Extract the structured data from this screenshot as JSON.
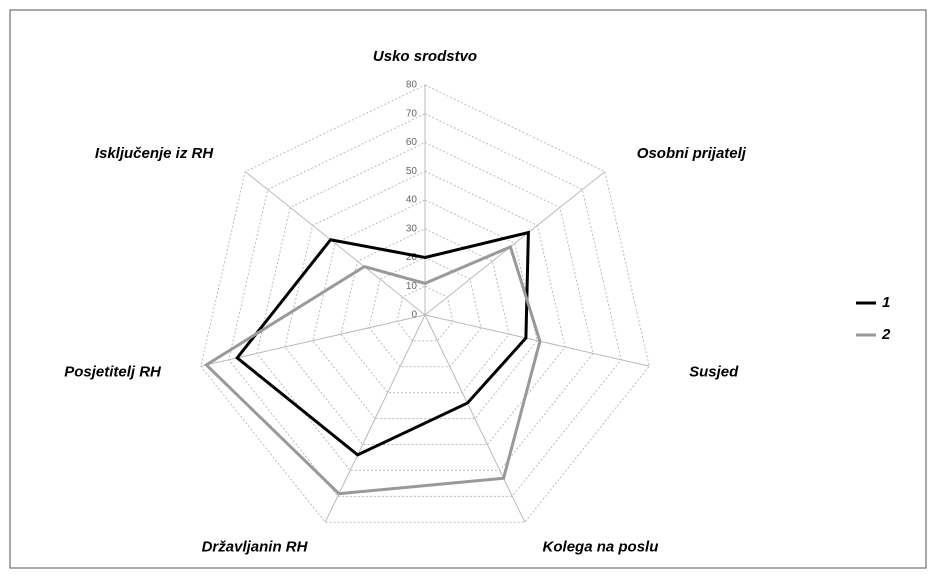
{
  "chart_data": {
    "type": "radar",
    "categories": [
      "Usko srodstvo",
      "Osobni prijatelj",
      "Susjed",
      "Kolega na poslu",
      "Državljanin RH",
      "Posjetitelj RH",
      "Isključenje iz RH"
    ],
    "series": [
      {
        "name": "1",
        "color": "#000000",
        "values": [
          20,
          46,
          36,
          34,
          54,
          67,
          42
        ]
      },
      {
        "name": "2",
        "color": "#999999",
        "values": [
          11,
          38,
          41,
          63,
          69,
          78,
          27
        ]
      }
    ],
    "ylim": [
      0,
      80
    ],
    "yticks": [
      0,
      10,
      20,
      30,
      40,
      50,
      60,
      70,
      80
    ],
    "grid": true,
    "legend": "right"
  }
}
